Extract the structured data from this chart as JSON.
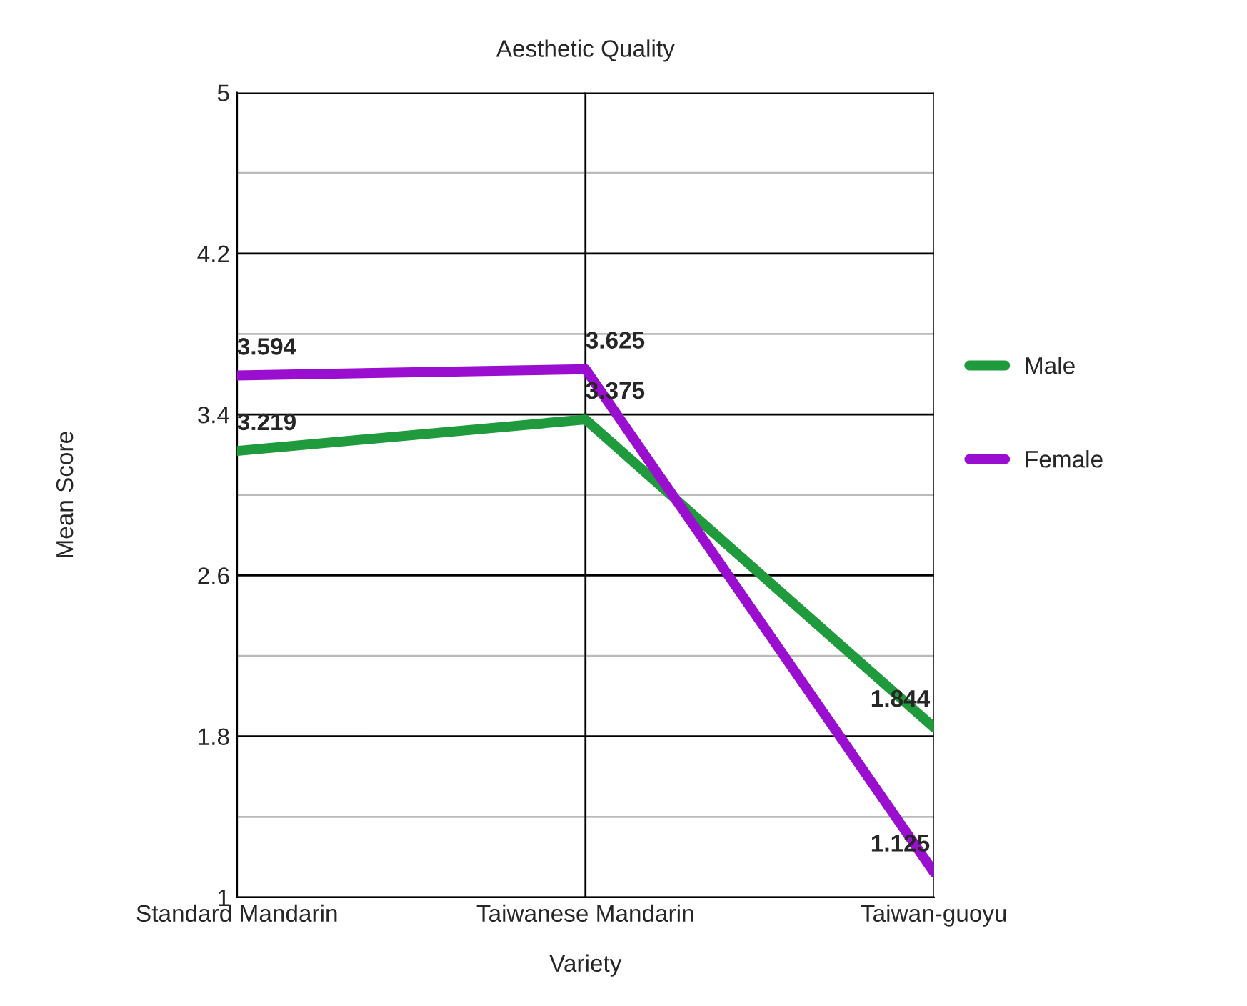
{
  "chart_data": {
    "type": "line",
    "title": "Aesthetic Quality",
    "xlabel": "Variety",
    "ylabel": "Mean Score",
    "categories": [
      "Standard Mandarin",
      "Taiwanese Mandarin",
      "Taiwan-guoyu"
    ],
    "series": [
      {
        "name": "Male",
        "color": "#1f9a3c",
        "values": [
          3.219,
          3.375,
          1.844
        ]
      },
      {
        "name": "Female",
        "color": "#9a0fcf",
        "values": [
          3.594,
          3.625,
          1.125
        ]
      }
    ],
    "ylim": [
      1,
      5
    ],
    "yticks": [
      1,
      {
        "value": 1.4,
        "label": null
      },
      1.8,
      {
        "value": 2.2,
        "label": null
      },
      2.6,
      {
        "value": 3.0,
        "label": null
      },
      3.4,
      {
        "value": 3.8,
        "label": null
      },
      4.2,
      {
        "value": 4.6,
        "label": null
      },
      5
    ],
    "grid": true,
    "legend": "right",
    "data_labels": true,
    "marker": "none",
    "line_style": "solid"
  }
}
